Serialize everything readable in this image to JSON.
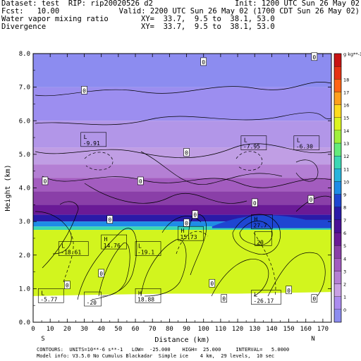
{
  "header": {
    "line1_left": "Dataset: test  RIP: rip20020526 d2",
    "line1_right": "Init: 1200 UTC Sun 26 May 02",
    "line2_left": "Fcst:   10.00",
    "line2_right": "Valid: 2200 UTC Sun 26 May 02 (1700 CDT Sun 26 May 02)",
    "line3_left": "Water vapor mixing ratio",
    "line3_right": "XY=  33.7,  9.5 to  38.1, 53.0",
    "line4_left": "Divergence",
    "line4_right": "XY=  33.7,  9.5 to  38.1, 53.0"
  },
  "footer": {
    "line1": "CONTOURS:  UNITS=10**-6 s**-1   LOW=  -25.000    HIGH=  25.000     INTERVAL=   5.0000",
    "line2": "Model info: V3.5.0 No Cumulus Blackadar  Simple ice    4 km,  29 levels,  10 sec"
  },
  "colorbar": {
    "unit_label": "g kg**-1",
    "labels": [
      "0",
      "1",
      "2",
      "3",
      "4",
      "5",
      "6",
      "7",
      "8",
      "9",
      "10",
      "11",
      "12",
      "13",
      "14",
      "15",
      "16",
      "17",
      "18"
    ],
    "colors": [
      "#8c8cf0",
      "#ab8bf0",
      "#c9a0e4",
      "#b57fd4",
      "#a35cbf",
      "#8a3fa8",
      "#6a1a96",
      "#4a0f96",
      "#2a1aa8",
      "#1e46d2",
      "#1e8ce6",
      "#28b4dc",
      "#3cd7b4",
      "#64eb7a",
      "#a0f03c",
      "#dcf51e",
      "#ffdc1e",
      "#ffa01e",
      "#ff6414",
      "#e63214",
      "#c81414"
    ]
  },
  "chart_data": {
    "type": "heatmap",
    "xlabel": "Distance (km)",
    "ylabel": "Height (km)",
    "xlim": [
      0,
      175
    ],
    "ylim": [
      0,
      8
    ],
    "xticks": [
      0,
      10,
      20,
      30,
      40,
      50,
      60,
      70,
      80,
      90,
      100,
      110,
      120,
      130,
      140,
      150,
      160,
      170
    ],
    "yticks": [
      0.0,
      1.0,
      2.0,
      3.0,
      4.0,
      5.0,
      6.0,
      7.0,
      8.0
    ],
    "xtick_labels": [
      "0",
      "10",
      "20",
      "30",
      "40",
      "50",
      "60",
      "70",
      "80",
      "90",
      "100",
      "110",
      "120",
      "130",
      "140",
      "150",
      "160",
      "170"
    ],
    "ytick_labels": [
      "0.0",
      "1.0",
      "2.0",
      "3.0",
      "4.0",
      "5.0",
      "6.0",
      "7.0",
      "8.0"
    ],
    "endpoint_labels": {
      "left": "S",
      "right": "N"
    },
    "annotations": [
      {
        "text": "L",
        "value": "-9.91",
        "x": 28,
        "y": 5.4
      },
      {
        "text": "L",
        "value": "-7.95",
        "x": 122,
        "y": 5.3
      },
      {
        "text": "L",
        "value": "-6.30",
        "x": 153,
        "y": 5.3
      },
      {
        "text": "H",
        "value": "27.7",
        "x": 128,
        "y": 2.95
      },
      {
        "text": "",
        "value": "20",
        "x": 130,
        "y": 2.45
      },
      {
        "text": "H",
        "value": "15.73",
        "x": 85,
        "y": 2.6
      },
      {
        "text": "H",
        "value": "14.76",
        "x": 40,
        "y": 2.35
      },
      {
        "text": "L",
        "value": "-19.1",
        "x": 60,
        "y": 2.15
      },
      {
        "text": "L",
        "value": "-18.61",
        "x": 15,
        "y": 2.15
      },
      {
        "text": "H",
        "value": "18.88",
        "x": 60,
        "y": 0.75
      },
      {
        "text": "L",
        "value": "-26.17",
        "x": 128,
        "y": 0.7
      },
      {
        "text": "L",
        "value": "-5.77",
        "x": 3,
        "y": 0.75
      },
      {
        "text": "",
        "value": "-20",
        "x": 30,
        "y": 0.65
      }
    ],
    "zero_labels": [
      {
        "x": 100,
        "y": 7.75
      },
      {
        "x": 30,
        "y": 6.9
      },
      {
        "x": 165,
        "y": 7.9
      },
      {
        "x": 90,
        "y": 5.05
      },
      {
        "x": 7,
        "y": 4.2
      },
      {
        "x": 95,
        "y": 3.2
      },
      {
        "x": 163,
        "y": 3.65
      },
      {
        "x": 45,
        "y": 3.05
      },
      {
        "x": 130,
        "y": 3.55
      },
      {
        "x": 90,
        "y": 2.95
      },
      {
        "x": 40,
        "y": 1.45
      },
      {
        "x": 20,
        "y": 1.1
      },
      {
        "x": 105,
        "y": 1.15
      },
      {
        "x": 112,
        "y": 0.7
      },
      {
        "x": 150,
        "y": 0.95
      },
      {
        "x": 165,
        "y": 0.7
      },
      {
        "x": 63,
        "y": 4.2
      }
    ]
  }
}
